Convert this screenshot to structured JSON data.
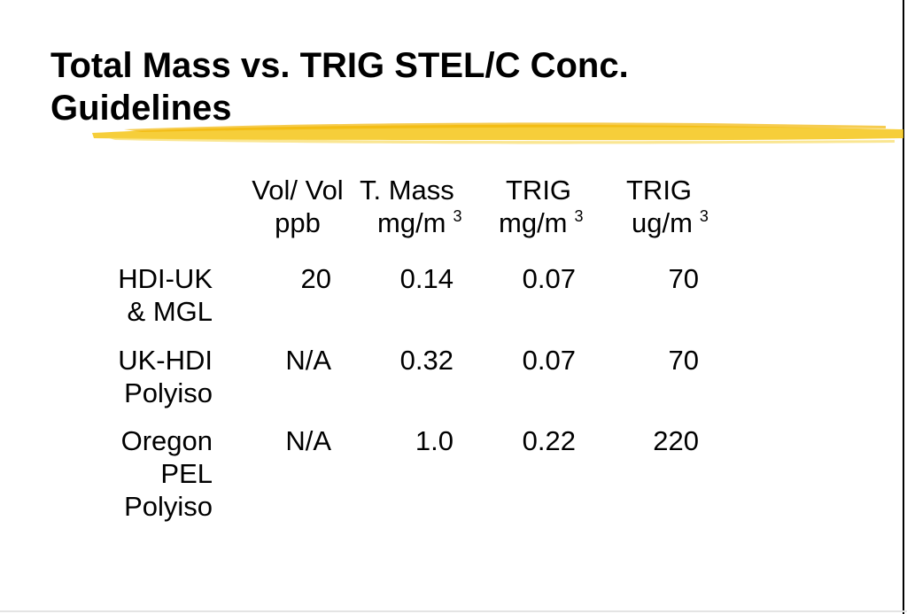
{
  "slide": {
    "title_line1": "Total Mass vs. TRIG STEL/C Conc.",
    "title_line2": "Guidelines",
    "highlight_color": "#f5c518"
  },
  "table": {
    "headers": [
      {
        "top": "Vol/ Vol",
        "bottom": "ppb",
        "sup": ""
      },
      {
        "top": "T. Mass",
        "bottom": "mg/m",
        "sup": "3"
      },
      {
        "top": "TRIG",
        "bottom": "mg/m",
        "sup": "3"
      },
      {
        "top": "TRIG",
        "bottom": "ug/m",
        "sup": "3"
      }
    ],
    "rows": [
      {
        "label_lines": [
          "HDI-UK",
          "& MGL"
        ],
        "cells": [
          "20",
          "0.14",
          "0.07",
          "70"
        ]
      },
      {
        "label_lines": [
          "UK-HDI",
          "Polyiso"
        ],
        "cells": [
          "N/A",
          "0.32",
          "0.07",
          "70"
        ]
      },
      {
        "label_lines": [
          "Oregon",
          "PEL",
          "Polyiso"
        ],
        "cells": [
          "N/A",
          "1.0",
          "0.22",
          "220"
        ]
      }
    ]
  }
}
